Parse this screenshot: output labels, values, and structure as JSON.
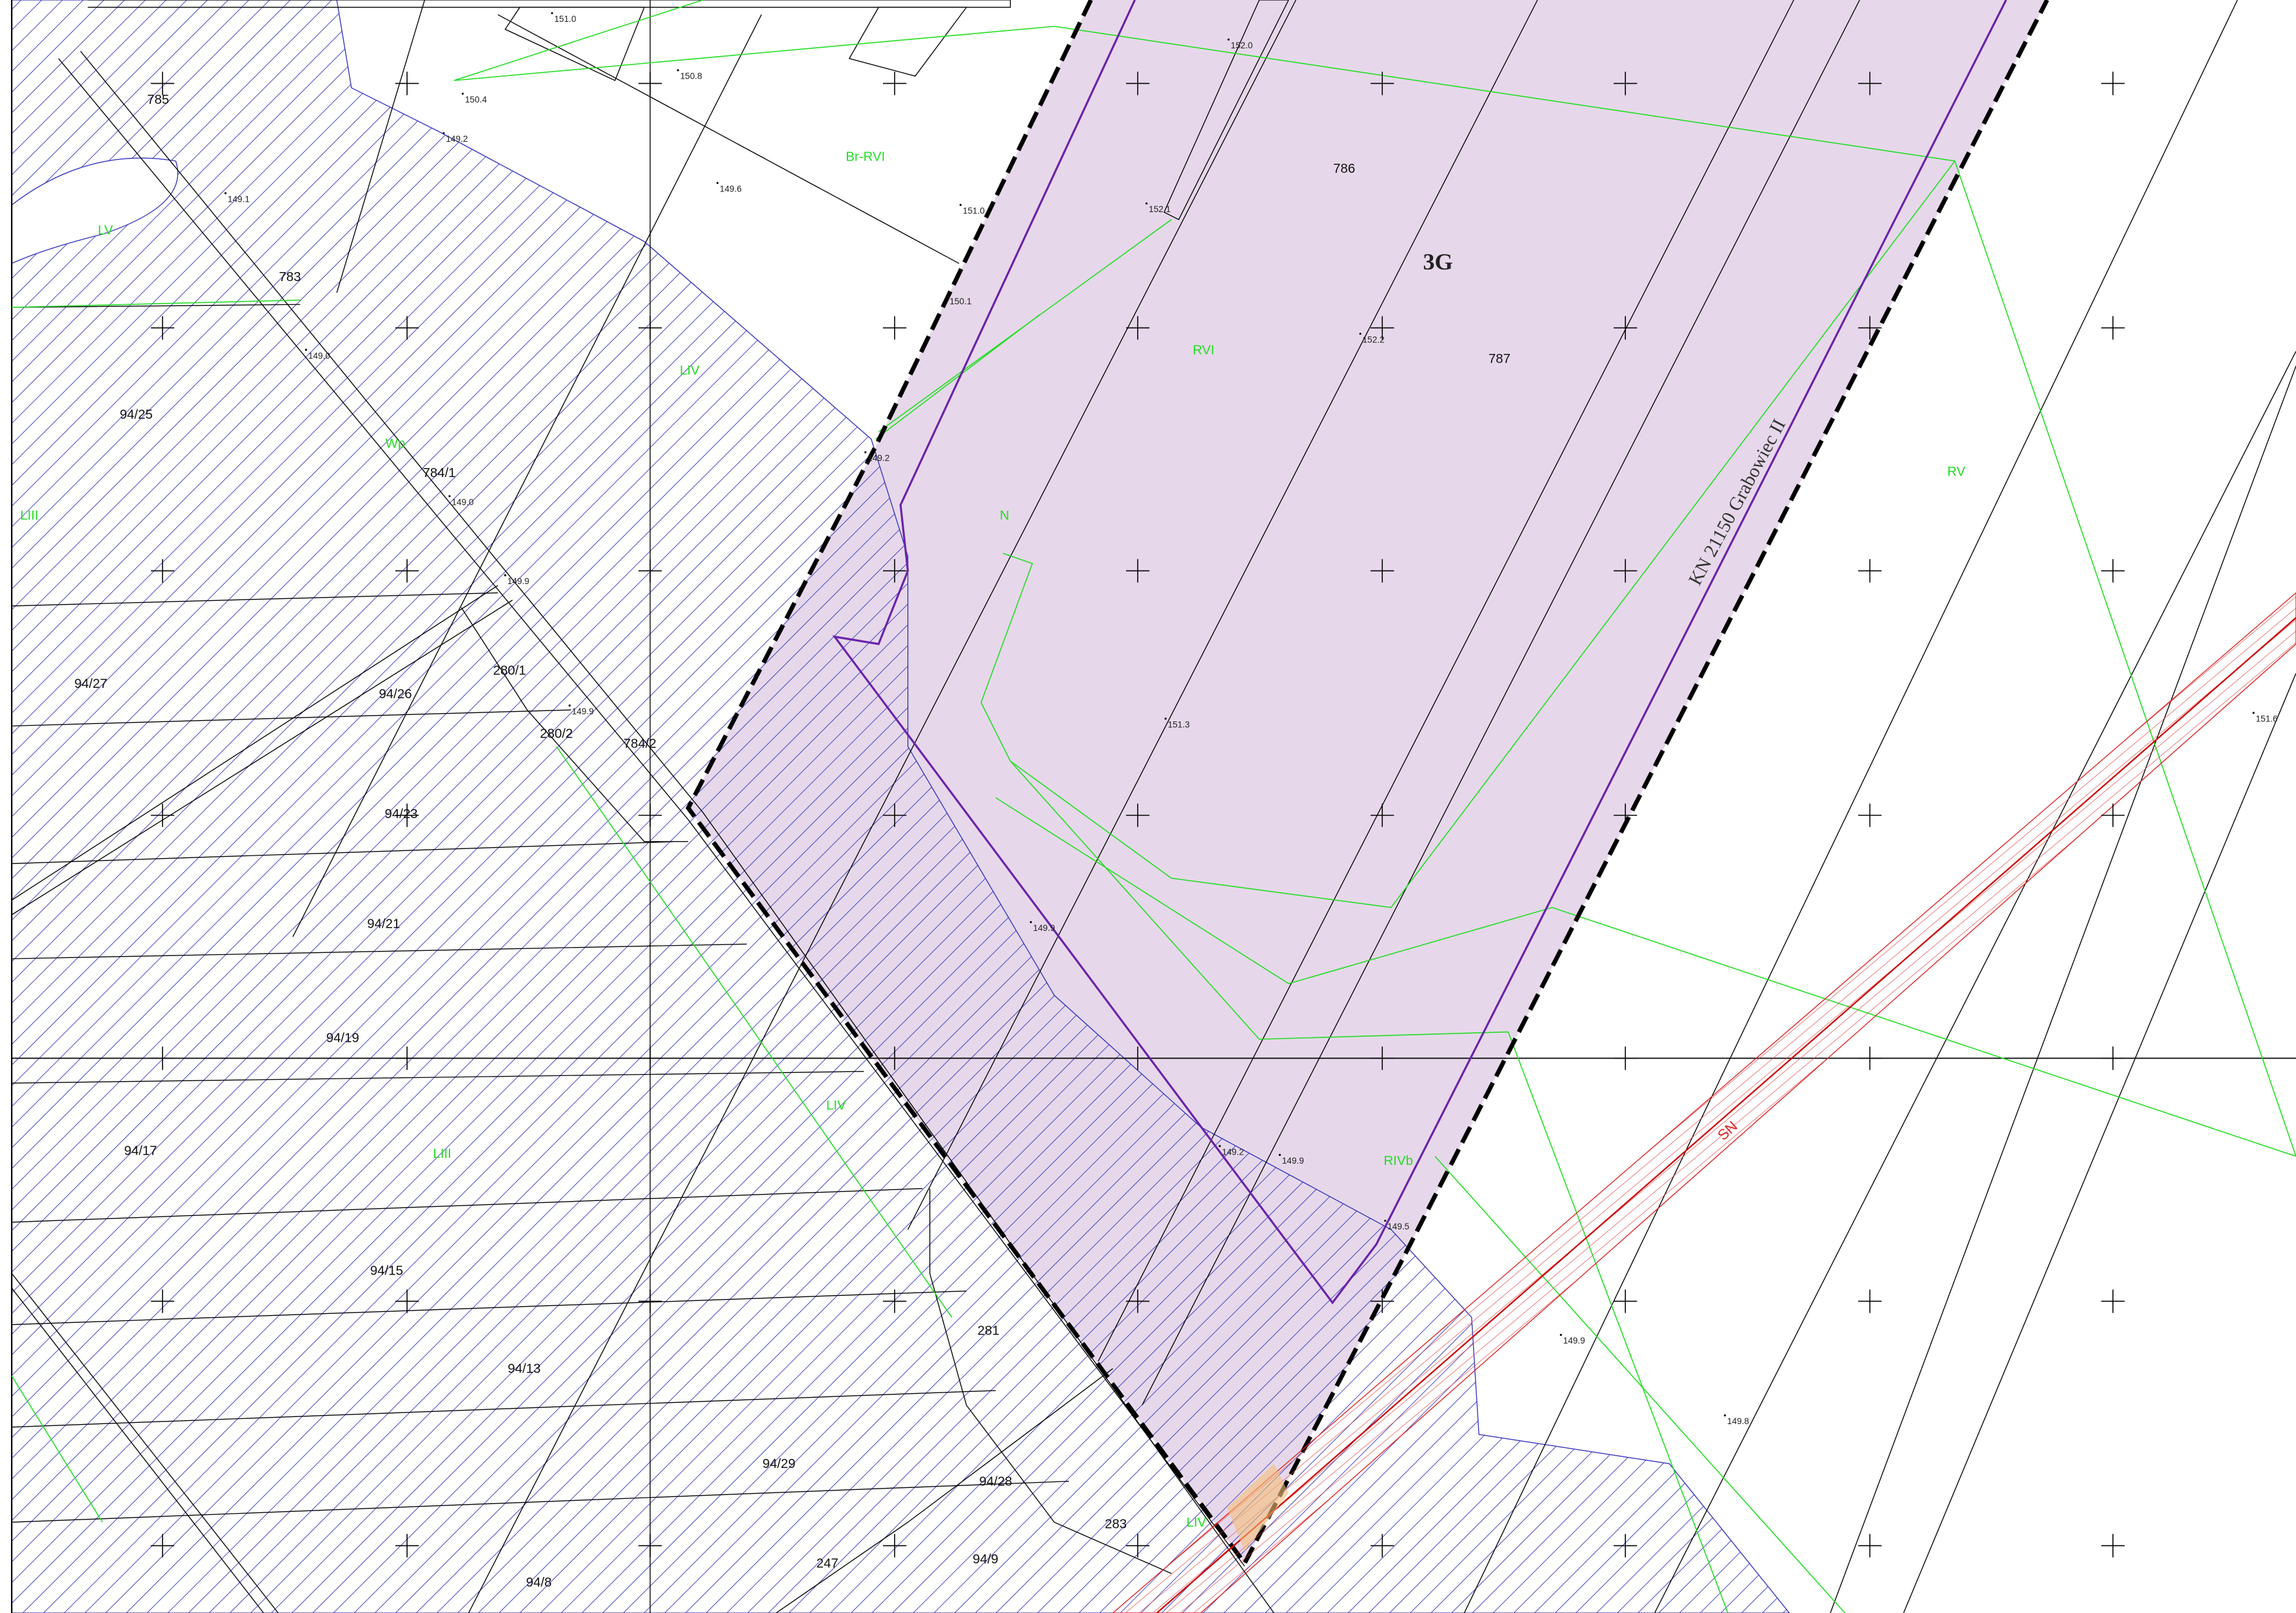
{
  "map": {
    "zone_label": "3G",
    "road_label": "KN 21150 Grabowiec II",
    "power_line_label": "SN",
    "parcels": [
      "786",
      "787",
      "94/25",
      "784/1",
      "94/27",
      "280/1",
      "94/26",
      "280/2",
      "784/2",
      "94/23",
      "94/21",
      "94/19",
      "94/17",
      "94/15",
      "94/13",
      "281",
      "94/29",
      "94/28",
      "283",
      "94/9",
      "94/8",
      "247",
      "783",
      "785"
    ],
    "land_classes": [
      "Br-RVI",
      "RVI",
      "LIV",
      "N",
      "RV",
      "LV",
      "LIII",
      "LIV",
      "LIII",
      "RIVb",
      "LIV",
      "Wp"
    ],
    "elevations": [
      "151.0",
      "150.8",
      "150.4",
      "149.2",
      "149.6",
      "151.0",
      "152.1",
      "152.0",
      "150.1",
      "152.2",
      "149.2",
      "149.0",
      "149.9",
      "149.9",
      "151.3",
      "149.9",
      "149.2",
      "149.9",
      "149.5",
      "149.9",
      "149.8",
      "151.6",
      "149.1",
      "149.0"
    ]
  }
}
